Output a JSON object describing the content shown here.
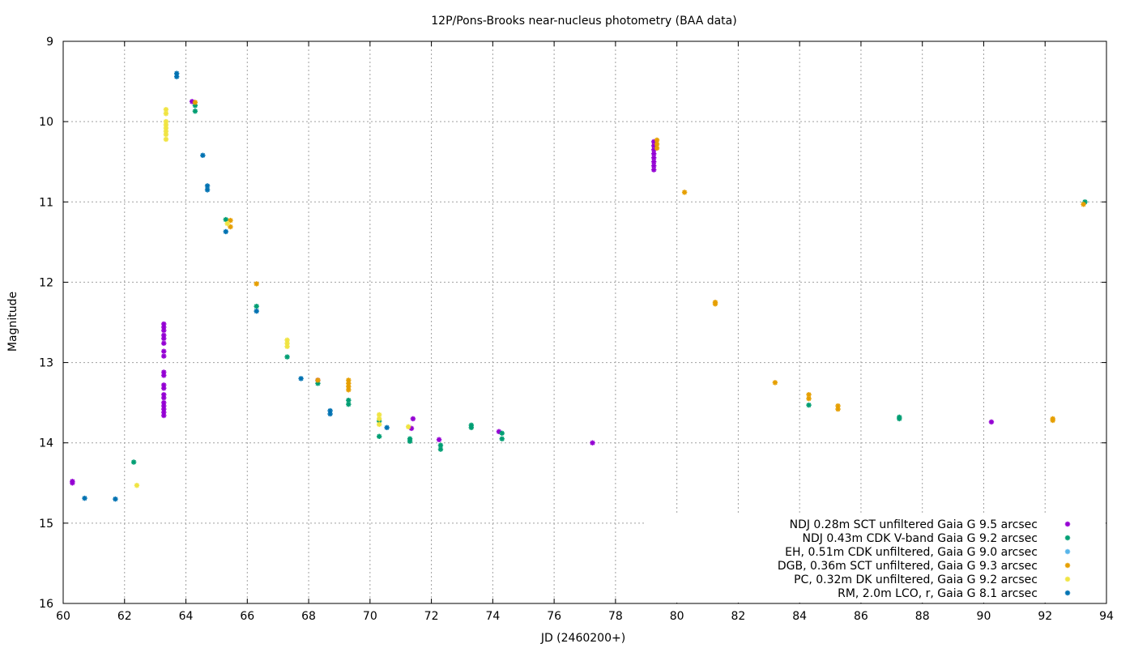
{
  "chart_data": {
    "type": "scatter",
    "title": "12P/Pons-Brooks near-nucleus photometry (BAA data)",
    "xlabel": "JD (2460200+)",
    "ylabel": "Magnitude",
    "xlim": [
      60,
      94
    ],
    "ylim": [
      16,
      9
    ],
    "y_inverted": true,
    "x_ticks": [
      60,
      62,
      64,
      66,
      68,
      70,
      72,
      74,
      76,
      78,
      80,
      82,
      84,
      86,
      88,
      90,
      92,
      94
    ],
    "y_ticks": [
      9,
      10,
      11,
      12,
      13,
      14,
      15,
      16
    ],
    "grid": true,
    "legend_position": "bottom-right",
    "series": [
      {
        "name": "NDJ 0.28m SCT unfiltered Gaia G 9.5 arcsec",
        "color": "#9400d3",
        "marker": "asterisk",
        "points": [
          [
            60.3,
            14.48
          ],
          [
            60.3,
            14.5
          ],
          [
            63.28,
            12.52
          ],
          [
            63.28,
            12.56
          ],
          [
            63.28,
            12.6
          ],
          [
            63.28,
            12.66
          ],
          [
            63.28,
            12.7
          ],
          [
            63.28,
            12.76
          ],
          [
            63.28,
            12.86
          ],
          [
            63.28,
            12.92
          ],
          [
            63.28,
            13.12
          ],
          [
            63.28,
            13.16
          ],
          [
            63.28,
            13.28
          ],
          [
            63.28,
            13.32
          ],
          [
            63.28,
            13.4
          ],
          [
            63.28,
            13.44
          ],
          [
            63.28,
            13.5
          ],
          [
            63.28,
            13.54
          ],
          [
            63.28,
            13.58
          ],
          [
            63.28,
            13.62
          ],
          [
            63.28,
            13.66
          ],
          [
            64.2,
            9.75
          ],
          [
            68.3,
            13.22
          ],
          [
            71.4,
            13.7
          ],
          [
            71.35,
            13.82
          ],
          [
            72.25,
            13.96
          ],
          [
            74.2,
            13.86
          ],
          [
            77.25,
            14.0
          ],
          [
            79.25,
            10.25
          ],
          [
            79.25,
            10.3
          ],
          [
            79.25,
            10.35
          ],
          [
            79.25,
            10.4
          ],
          [
            79.25,
            10.45
          ],
          [
            79.25,
            10.5
          ],
          [
            79.25,
            10.55
          ],
          [
            79.25,
            10.6
          ],
          [
            90.25,
            13.74
          ]
        ]
      },
      {
        "name": "NDJ 0.43m CDK V-band Gaia G 9.2 arcsec",
        "color": "#009e73",
        "marker": "asterisk",
        "points": [
          [
            62.3,
            14.24
          ],
          [
            64.3,
            9.8
          ],
          [
            64.3,
            9.87
          ],
          [
            65.3,
            11.22
          ],
          [
            66.3,
            12.3
          ],
          [
            67.3,
            12.93
          ],
          [
            68.3,
            13.26
          ],
          [
            69.3,
            13.47
          ],
          [
            69.3,
            13.52
          ],
          [
            70.3,
            13.73
          ],
          [
            70.3,
            13.92
          ],
          [
            71.3,
            13.95
          ],
          [
            71.3,
            13.98
          ],
          [
            72.3,
            14.03
          ],
          [
            72.3,
            14.08
          ],
          [
            73.3,
            13.78
          ],
          [
            73.3,
            13.81
          ],
          [
            74.3,
            13.88
          ],
          [
            74.3,
            13.95
          ],
          [
            84.3,
            13.53
          ],
          [
            87.25,
            13.68
          ],
          [
            87.25,
            13.7
          ],
          [
            93.3,
            11.0
          ]
        ]
      },
      {
        "name": "EH, 0.51m CDK unfiltered, Gaia G 9.0 arcsec",
        "color": "#56b4e9",
        "marker": "asterisk",
        "points": []
      },
      {
        "name": "DGB, 0.36m SCT unfiltered, Gaia G 9.3 arcsec",
        "color": "#e69f00",
        "marker": "asterisk",
        "points": [
          [
            64.3,
            9.76
          ],
          [
            65.45,
            11.23
          ],
          [
            65.45,
            11.31
          ],
          [
            66.3,
            12.02
          ],
          [
            68.3,
            13.22
          ],
          [
            69.3,
            13.22
          ],
          [
            69.3,
            13.26
          ],
          [
            69.3,
            13.3
          ],
          [
            69.3,
            13.34
          ],
          [
            79.35,
            10.23
          ],
          [
            79.35,
            10.28
          ],
          [
            79.35,
            10.33
          ],
          [
            80.25,
            10.88
          ],
          [
            81.25,
            12.25
          ],
          [
            81.25,
            12.27
          ],
          [
            83.2,
            13.25
          ],
          [
            84.3,
            13.4
          ],
          [
            84.3,
            13.45
          ],
          [
            85.25,
            13.54
          ],
          [
            85.25,
            13.58
          ],
          [
            92.25,
            13.7
          ],
          [
            92.25,
            13.72
          ],
          [
            93.25,
            11.03
          ]
        ]
      },
      {
        "name": "PC, 0.32m DK unfiltered, Gaia G 9.2 arcsec",
        "color": "#f0e442",
        "marker": "asterisk",
        "points": [
          [
            62.4,
            14.53
          ],
          [
            63.35,
            9.85
          ],
          [
            63.35,
            9.9
          ],
          [
            63.35,
            10.0
          ],
          [
            63.35,
            10.04
          ],
          [
            63.35,
            10.08
          ],
          [
            63.35,
            10.12
          ],
          [
            63.35,
            10.16
          ],
          [
            63.35,
            10.22
          ],
          [
            65.35,
            11.27
          ],
          [
            67.3,
            12.72
          ],
          [
            67.3,
            12.76
          ],
          [
            67.3,
            12.8
          ],
          [
            70.3,
            13.65
          ],
          [
            70.3,
            13.7
          ],
          [
            70.3,
            13.77
          ],
          [
            71.25,
            13.8
          ]
        ]
      },
      {
        "name": "RM, 2.0m LCO, r, Gaia G 8.1 arcsec",
        "color": "#0072b2",
        "marker": "asterisk",
        "points": [
          [
            60.7,
            14.69
          ],
          [
            61.7,
            14.7
          ],
          [
            63.7,
            9.4
          ],
          [
            63.7,
            9.44
          ],
          [
            64.55,
            10.42
          ],
          [
            64.7,
            10.8
          ],
          [
            64.7,
            10.85
          ],
          [
            65.3,
            11.37
          ],
          [
            66.3,
            12.36
          ],
          [
            67.75,
            13.2
          ],
          [
            68.7,
            13.6
          ],
          [
            68.7,
            13.64
          ],
          [
            70.55,
            13.81
          ]
        ]
      }
    ]
  }
}
